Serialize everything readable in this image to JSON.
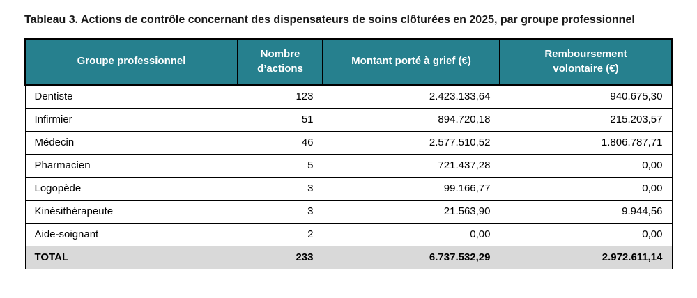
{
  "title": "Tableau 3. Actions de contrôle concernant des dispensateurs de soins clôturées en 2025, par groupe professionnel",
  "colors": {
    "header_bg": "#26808E",
    "header_text": "#FFFFFF",
    "total_bg": "#D9D9D9",
    "border": "#000000"
  },
  "table": {
    "headers": [
      "Groupe professionnel",
      "Nombre d’actions",
      "Montant porté à grief (€)",
      "Remboursement volontaire (€)"
    ],
    "rows": [
      {
        "group": "Dentiste",
        "actions": "123",
        "grief": "2.423.133,64",
        "remboursement": "940.675,30"
      },
      {
        "group": "Infirmier",
        "actions": "51",
        "grief": "894.720,18",
        "remboursement": "215.203,57"
      },
      {
        "group": "Médecin",
        "actions": "46",
        "grief": "2.577.510,52",
        "remboursement": "1.806.787,71"
      },
      {
        "group": "Pharmacien",
        "actions": "5",
        "grief": "721.437,28",
        "remboursement": "0,00"
      },
      {
        "group": "Logopède",
        "actions": "3",
        "grief": "99.166,77",
        "remboursement": "0,00"
      },
      {
        "group": "Kinésithérapeute",
        "actions": "3",
        "grief": "21.563,90",
        "remboursement": "9.944,56"
      },
      {
        "group": "Aide-soignant",
        "actions": "2",
        "grief": "0,00",
        "remboursement": "0,00"
      }
    ],
    "total_row": {
      "group": "TOTAL",
      "actions": "233",
      "grief": "6.737.532,29",
      "remboursement": "2.972.611,14"
    }
  }
}
